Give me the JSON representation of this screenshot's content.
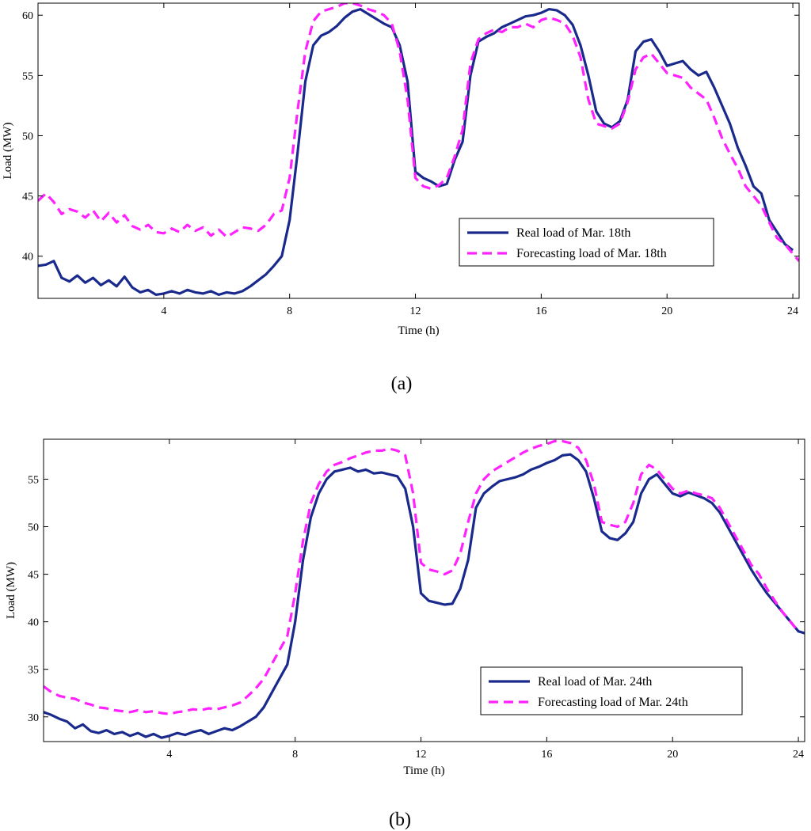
{
  "chart_data": [
    {
      "type": "line",
      "caption": "(a)",
      "xlabel": "Time (h)",
      "ylabel": "Load (MW)",
      "xlim": [
        0,
        24.2
      ],
      "ylim": [
        36.5,
        61
      ],
      "xticks": [
        4,
        8,
        12,
        16,
        20,
        24
      ],
      "yticks": [
        40,
        45,
        50,
        55,
        60
      ],
      "legend_position": "lower-right",
      "series": [
        {
          "name": "Real load of Mar. 18th",
          "color": "#1a2a8c",
          "dash": "solid",
          "x": [
            0,
            0.25,
            0.5,
            0.75,
            1,
            1.25,
            1.5,
            1.75,
            2,
            2.25,
            2.5,
            2.75,
            3,
            3.25,
            3.5,
            3.75,
            4,
            4.25,
            4.5,
            4.75,
            5,
            5.25,
            5.5,
            5.75,
            6,
            6.25,
            6.5,
            6.75,
            7,
            7.25,
            7.5,
            7.75,
            8,
            8.25,
            8.5,
            8.75,
            9,
            9.25,
            9.5,
            9.75,
            10,
            10.25,
            10.5,
            10.75,
            11,
            11.25,
            11.5,
            11.75,
            12,
            12.25,
            12.5,
            12.75,
            13,
            13.25,
            13.5,
            13.75,
            14,
            14.25,
            14.5,
            14.75,
            15,
            15.25,
            15.5,
            15.75,
            16,
            16.25,
            16.5,
            16.75,
            17,
            17.25,
            17.5,
            17.75,
            18,
            18.25,
            18.5,
            18.75,
            19,
            19.25,
            19.5,
            19.75,
            20,
            20.25,
            20.5,
            20.75,
            21,
            21.25,
            21.5,
            21.75,
            22,
            22.25,
            22.5,
            22.75,
            23,
            23.25,
            23.5,
            23.75,
            24
          ],
          "y": [
            39.2,
            39.3,
            39.6,
            38.2,
            37.9,
            38.4,
            37.8,
            38.2,
            37.6,
            38.0,
            37.5,
            38.3,
            37.4,
            37.0,
            37.2,
            36.8,
            36.9,
            37.1,
            36.9,
            37.2,
            37.0,
            36.9,
            37.1,
            36.8,
            37.0,
            36.9,
            37.1,
            37.5,
            38.0,
            38.5,
            39.2,
            40.0,
            43.0,
            48.5,
            54.5,
            57.5,
            58.3,
            58.6,
            59.1,
            59.8,
            60.3,
            60.5,
            60.1,
            59.7,
            59.3,
            59.0,
            57.5,
            54.5,
            47.0,
            46.5,
            46.2,
            45.8,
            46.0,
            48.0,
            49.5,
            55.0,
            57.8,
            58.2,
            58.5,
            59.0,
            59.3,
            59.6,
            59.9,
            60.0,
            60.2,
            60.5,
            60.4,
            60.0,
            59.2,
            57.5,
            55.0,
            52.0,
            51.0,
            50.7,
            51.2,
            53.0,
            57.0,
            57.8,
            58.0,
            57.0,
            55.8,
            56.0,
            56.2,
            55.5,
            55.0,
            55.3,
            54.0,
            52.5,
            51.0,
            49.0,
            47.5,
            45.8,
            45.2,
            43.0,
            42.0,
            41.0,
            40.5
          ]
        },
        {
          "name": "Forecasting load of Mar. 18th",
          "color": "#ff22ff",
          "dash": "dashed",
          "x": [
            0,
            0.25,
            0.5,
            0.75,
            1,
            1.25,
            1.5,
            1.75,
            2,
            2.25,
            2.5,
            2.75,
            3,
            3.25,
            3.5,
            3.75,
            4,
            4.25,
            4.5,
            4.75,
            5,
            5.25,
            5.5,
            5.75,
            6,
            6.25,
            6.5,
            6.75,
            7,
            7.25,
            7.5,
            7.75,
            8,
            8.25,
            8.5,
            8.75,
            9,
            9.25,
            9.5,
            9.75,
            10,
            10.25,
            10.5,
            10.75,
            11,
            11.25,
            11.5,
            11.75,
            12,
            12.25,
            12.5,
            12.75,
            13,
            13.25,
            13.5,
            13.75,
            14,
            14.25,
            14.5,
            14.75,
            15,
            15.25,
            15.5,
            15.75,
            16,
            16.25,
            16.5,
            16.75,
            17,
            17.25,
            17.5,
            17.75,
            18,
            18.25,
            18.5,
            18.75,
            19,
            19.25,
            19.5,
            19.75,
            20,
            20.25,
            20.5,
            20.75,
            21,
            21.25,
            21.5,
            21.75,
            22,
            22.25,
            22.5,
            22.75,
            23,
            23.25,
            23.5,
            23.75,
            24,
            24.2
          ],
          "y": [
            44.6,
            45.2,
            44.5,
            43.5,
            43.9,
            43.7,
            43.2,
            43.8,
            42.9,
            43.6,
            42.8,
            43.4,
            42.5,
            42.2,
            42.6,
            42.0,
            41.9,
            42.3,
            42.0,
            42.6,
            42.1,
            42.4,
            41.7,
            42.2,
            41.6,
            42.0,
            42.4,
            42.3,
            42.1,
            42.6,
            43.5,
            43.8,
            46.5,
            52.0,
            57.0,
            59.5,
            60.3,
            60.5,
            60.7,
            61.0,
            61.0,
            60.8,
            60.5,
            60.3,
            60.0,
            59.3,
            57.0,
            53.0,
            46.5,
            45.8,
            45.6,
            45.9,
            46.5,
            48.3,
            50.5,
            56.0,
            58.0,
            58.5,
            58.8,
            58.6,
            59.0,
            59.0,
            59.3,
            59.0,
            59.6,
            59.8,
            59.6,
            59.3,
            58.3,
            56.5,
            53.0,
            51.0,
            50.8,
            50.6,
            51.0,
            52.8,
            55.5,
            56.5,
            56.8,
            56.0,
            55.2,
            55.0,
            54.8,
            54.0,
            53.5,
            53.0,
            51.5,
            49.8,
            48.5,
            47.3,
            45.8,
            45.0,
            44.2,
            42.8,
            41.5,
            41.0,
            40.2,
            39.6
          ]
        }
      ]
    },
    {
      "type": "line",
      "caption": "(b)",
      "xlabel": "Time (h)",
      "ylabel": "Load (MW)",
      "xlim": [
        0,
        24.2
      ],
      "ylim": [
        27.4,
        59.2
      ],
      "xticks": [
        4,
        8,
        12,
        16,
        20,
        24
      ],
      "yticks": [
        30,
        35,
        40,
        45,
        50,
        55
      ],
      "legend_position": "lower-right",
      "series": [
        {
          "name": "Real load of Mar. 24th",
          "color": "#1a2a8c",
          "dash": "solid",
          "x": [
            0,
            0.25,
            0.5,
            0.75,
            1,
            1.25,
            1.5,
            1.75,
            2,
            2.25,
            2.5,
            2.75,
            3,
            3.25,
            3.5,
            3.75,
            4,
            4.25,
            4.5,
            4.75,
            5,
            5.25,
            5.5,
            5.75,
            6,
            6.25,
            6.5,
            6.75,
            7,
            7.25,
            7.5,
            7.75,
            8,
            8.25,
            8.5,
            8.75,
            9,
            9.25,
            9.5,
            9.75,
            10,
            10.25,
            10.5,
            10.75,
            11,
            11.25,
            11.5,
            11.75,
            12,
            12.25,
            12.5,
            12.75,
            13,
            13.25,
            13.5,
            13.75,
            14,
            14.25,
            14.5,
            14.75,
            15,
            15.25,
            15.5,
            15.75,
            16,
            16.25,
            16.5,
            16.75,
            17,
            17.25,
            17.5,
            17.75,
            18,
            18.25,
            18.5,
            18.75,
            19,
            19.25,
            19.5,
            19.75,
            20,
            20.25,
            20.5,
            20.75,
            21,
            21.25,
            21.5,
            21.75,
            22,
            22.25,
            22.5,
            22.75,
            23,
            23.25,
            23.5,
            23.75,
            24,
            24.2
          ],
          "y": [
            30.5,
            30.2,
            29.8,
            29.5,
            28.8,
            29.2,
            28.5,
            28.3,
            28.6,
            28.2,
            28.4,
            28.0,
            28.3,
            27.9,
            28.2,
            27.8,
            28.0,
            28.3,
            28.1,
            28.4,
            28.6,
            28.2,
            28.5,
            28.8,
            28.6,
            29.0,
            29.5,
            30.0,
            31.0,
            32.5,
            34.0,
            35.5,
            40.0,
            46.5,
            51.0,
            53.5,
            55.0,
            55.8,
            56.0,
            56.2,
            55.8,
            56.0,
            55.6,
            55.7,
            55.5,
            55.3,
            54.0,
            50.0,
            43.0,
            42.2,
            42.0,
            41.8,
            41.9,
            43.5,
            46.5,
            52.0,
            53.5,
            54.2,
            54.8,
            55.0,
            55.2,
            55.5,
            56.0,
            56.3,
            56.7,
            57.0,
            57.5,
            57.6,
            57.0,
            55.8,
            53.0,
            49.5,
            48.8,
            48.6,
            49.3,
            50.5,
            53.5,
            55.0,
            55.5,
            54.5,
            53.5,
            53.2,
            53.6,
            53.3,
            53.0,
            52.5,
            51.5,
            50.0,
            48.5,
            47.0,
            45.5,
            44.2,
            43.0,
            42.0,
            41.0,
            40.0,
            39.0,
            38.8
          ]
        },
        {
          "name": "Forecasting load of Mar. 24th",
          "color": "#ff22ff",
          "dash": "dashed",
          "x": [
            0,
            0.25,
            0.5,
            0.75,
            1,
            1.25,
            1.5,
            1.75,
            2,
            2.25,
            2.5,
            2.75,
            3,
            3.25,
            3.5,
            3.75,
            4,
            4.25,
            4.5,
            4.75,
            5,
            5.25,
            5.5,
            5.75,
            6,
            6.25,
            6.5,
            6.75,
            7,
            7.25,
            7.5,
            7.75,
            8,
            8.25,
            8.5,
            8.75,
            9,
            9.25,
            9.5,
            9.75,
            10,
            10.25,
            10.5,
            10.75,
            11,
            11.25,
            11.5,
            11.75,
            12,
            12.25,
            12.5,
            12.75,
            13,
            13.25,
            13.5,
            13.75,
            14,
            14.25,
            14.5,
            14.75,
            15,
            15.25,
            15.5,
            15.75,
            16,
            16.25,
            16.5,
            16.75,
            17,
            17.25,
            17.5,
            17.75,
            18,
            18.25,
            18.5,
            18.75,
            19,
            19.25,
            19.5,
            19.75,
            20,
            20.25,
            20.5,
            20.75,
            21,
            21.25,
            21.5,
            21.75,
            22,
            22.25,
            22.5,
            22.75,
            23,
            23.25,
            23.5,
            23.75,
            24
          ],
          "y": [
            33.2,
            32.6,
            32.2,
            32.0,
            31.9,
            31.5,
            31.3,
            31.0,
            30.9,
            30.7,
            30.6,
            30.5,
            30.7,
            30.5,
            30.6,
            30.4,
            30.3,
            30.5,
            30.6,
            30.8,
            30.7,
            30.9,
            30.8,
            31.0,
            31.2,
            31.5,
            32.2,
            33.0,
            34.0,
            35.5,
            37.0,
            38.5,
            43.0,
            48.5,
            52.5,
            54.5,
            55.8,
            56.5,
            56.8,
            57.2,
            57.5,
            57.8,
            58.0,
            58.0,
            58.2,
            58.0,
            57.5,
            53.5,
            46.2,
            45.5,
            45.3,
            45.0,
            45.4,
            47.2,
            50.5,
            53.5,
            55.0,
            55.8,
            56.3,
            56.8,
            57.3,
            57.8,
            58.2,
            58.5,
            58.7,
            59.0,
            59.0,
            58.8,
            58.3,
            57.0,
            54.5,
            50.5,
            50.2,
            50.0,
            50.5,
            52.5,
            55.5,
            56.5,
            56.0,
            55.0,
            54.0,
            53.5,
            53.8,
            53.5,
            53.3,
            53.0,
            52.0,
            50.5,
            49.0,
            47.5,
            46.0,
            45.0,
            43.5,
            42.2,
            41.0,
            40.0,
            39.0
          ]
        }
      ]
    }
  ]
}
